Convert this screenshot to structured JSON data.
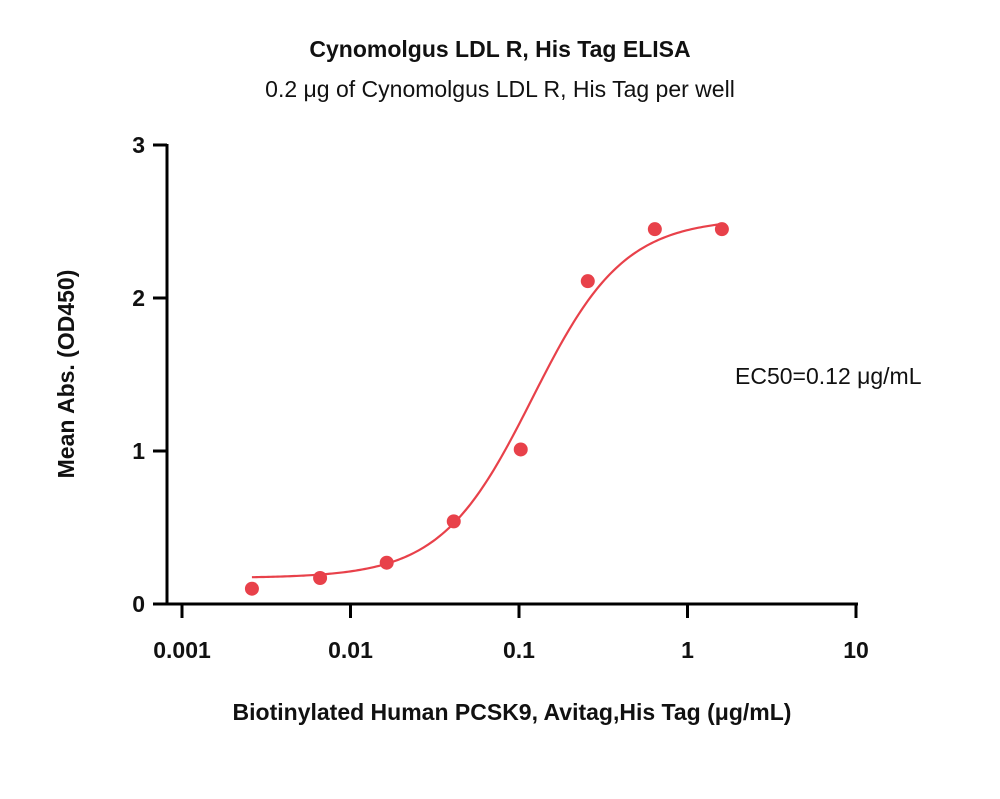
{
  "chart_data": {
    "type": "scatter",
    "title": "Cynomolgus LDL R, His Tag ELISA",
    "subtitle": "0.2 μg of Cynomolgus LDL R, His Tag per well",
    "xlabel": "Biotinylated Human PCSK9, Avitag,His Tag  (μg/mL)",
    "ylabel": "Mean Abs. (OD450)",
    "xscale": "log",
    "xlim": [
      0.001,
      10
    ],
    "ylim": [
      0,
      3
    ],
    "xticks": [
      {
        "value": 0.001,
        "label": "0.001"
      },
      {
        "value": 0.01,
        "label": "0.01"
      },
      {
        "value": 0.1,
        "label": "0.1"
      },
      {
        "value": 1,
        "label": "1"
      },
      {
        "value": 10,
        "label": "10"
      }
    ],
    "yticks": [
      {
        "value": 0,
        "label": "0"
      },
      {
        "value": 1,
        "label": "1"
      },
      {
        "value": 2,
        "label": "2"
      },
      {
        "value": 3,
        "label": "3"
      }
    ],
    "grid": false,
    "series": [
      {
        "color": "#e8414a",
        "points": [
          {
            "x": 0.0026,
            "y": 0.1
          },
          {
            "x": 0.0066,
            "y": 0.17
          },
          {
            "x": 0.0164,
            "y": 0.27
          },
          {
            "x": 0.041,
            "y": 0.54
          },
          {
            "x": 0.1024,
            "y": 1.01
          },
          {
            "x": 0.256,
            "y": 2.11
          },
          {
            "x": 0.64,
            "y": 2.45
          },
          {
            "x": 1.6,
            "y": 2.45
          }
        ],
        "fit": {
          "model": "4PL",
          "bottom": 0.17,
          "top": 2.52,
          "ec50": 0.12,
          "hill": 1.6,
          "x_range": [
            0.0026,
            1.6
          ]
        }
      }
    ],
    "annotations": [
      {
        "text": "EC50=0.12 μg/mL"
      }
    ]
  }
}
